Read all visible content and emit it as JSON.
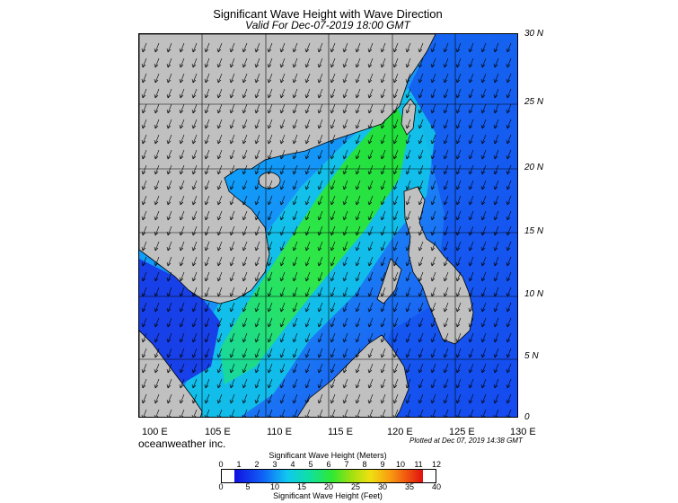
{
  "header": {
    "title": "Significant Wave Height with Wave Direction",
    "subtitle": "Valid For Dec-07-2019 18:00 GMT"
  },
  "map": {
    "lat_labels": [
      "30 N",
      "25 N",
      "20 N",
      "15 N",
      "10 N",
      "5 N",
      "0"
    ],
    "lon_labels": [
      "100 E",
      "105 E",
      "110 E",
      "115 E",
      "120 E",
      "125 E",
      "130 E"
    ],
    "land_color": "#c0c0c0",
    "sea_low_color": "#1a3cf0",
    "sea_high_color": "#28e62a",
    "arrow_direction": "toward south-southwest"
  },
  "footer": {
    "brand": "oceanweather inc.",
    "plotted": "Plotted at Dec 07, 2019 14:38 GMT"
  },
  "colorbar": {
    "meters_title": "Significant Wave Height (Meters)",
    "meters_ticks": [
      "0",
      "1",
      "2",
      "3",
      "4",
      "5",
      "6",
      "7",
      "8",
      "9",
      "10",
      "11",
      "12"
    ],
    "feet_ticks": [
      "0",
      "5",
      "10",
      "15",
      "20",
      "25",
      "30",
      "35",
      "40"
    ],
    "feet_title": "Significant Wave Height (Feet)"
  }
}
